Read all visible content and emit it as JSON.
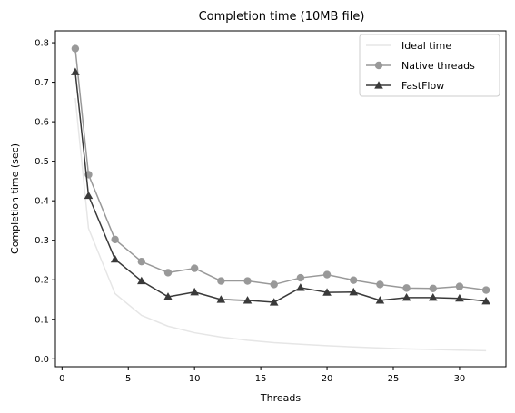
{
  "chart_data": {
    "type": "line",
    "title": "Completion time (10MB file)",
    "xlabel": "Threads",
    "ylabel": "Completion time (sec)",
    "xlim": [
      -0.5,
      33.5
    ],
    "ylim": [
      -0.02,
      0.83
    ],
    "xticks": [
      0,
      5,
      10,
      15,
      20,
      25,
      30
    ],
    "yticks": [
      0.0,
      0.1,
      0.2,
      0.3,
      0.4,
      0.5,
      0.6,
      0.7,
      0.8
    ],
    "legend_position": "top-right",
    "grid": false,
    "series": [
      {
        "name": "Ideal time",
        "color": "#e6e6e6",
        "marker": "none",
        "x": [
          1,
          2,
          4,
          6,
          8,
          10,
          12,
          14,
          16,
          18,
          20,
          22,
          24,
          26,
          28,
          30,
          32
        ],
        "y": [
          0.66,
          0.33,
          0.165,
          0.11,
          0.0825,
          0.066,
          0.055,
          0.047,
          0.041,
          0.037,
          0.033,
          0.03,
          0.0275,
          0.025,
          0.0235,
          0.022,
          0.0206
        ]
      },
      {
        "name": "Native threads",
        "color": "#999999",
        "marker": "circle",
        "x": [
          1,
          2,
          4,
          6,
          8,
          10,
          12,
          14,
          16,
          18,
          20,
          22,
          24,
          26,
          28,
          30,
          32
        ],
        "y": [
          0.785,
          0.466,
          0.302,
          0.246,
          0.218,
          0.229,
          0.197,
          0.197,
          0.188,
          0.205,
          0.213,
          0.199,
          0.188,
          0.179,
          0.178,
          0.183,
          0.174
        ]
      },
      {
        "name": "FastFlow",
        "color": "#3a3a3a",
        "marker": "triangle",
        "x": [
          1,
          2,
          4,
          6,
          8,
          10,
          12,
          14,
          16,
          18,
          20,
          22,
          24,
          26,
          28,
          30,
          32
        ],
        "y": [
          0.726,
          0.413,
          0.252,
          0.197,
          0.157,
          0.169,
          0.15,
          0.148,
          0.143,
          0.18,
          0.168,
          0.169,
          0.148,
          0.155,
          0.155,
          0.153,
          0.146
        ]
      }
    ]
  }
}
